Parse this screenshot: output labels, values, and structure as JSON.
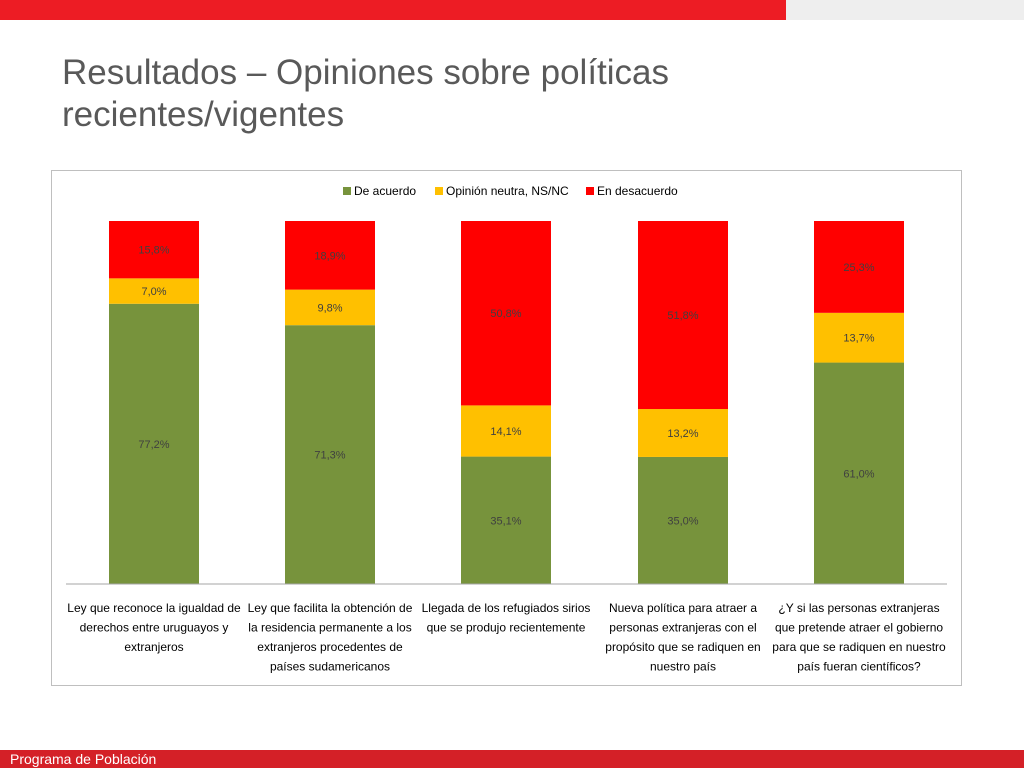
{
  "slide": {
    "title_line1": "Resultados – Opiniones sobre políticas",
    "title_line2": "recientes/vigentes",
    "footer": "Programa de Población"
  },
  "colors": {
    "topbar": "#ed1c24",
    "footer": "#d42027",
    "de_acuerdo": "#77933c",
    "neutral": "#ffc000",
    "desacuerdo": "#ff0000"
  },
  "chart_data": {
    "type": "bar",
    "stacked": true,
    "normalized_percent": true,
    "legend_position": "top",
    "grid": false,
    "categories": [
      [
        "Ley que reconoce la igualdad de",
        "derechos entre uruguayos y",
        "extranjeros"
      ],
      [
        "Ley que facilita la obtención de",
        "la residencia permanente a los",
        "extranjeros procedentes de",
        "países sudamericanos"
      ],
      [
        "Llegada de los refugiados sirios",
        "que se produjo recientemente"
      ],
      [
        "Nueva política para atraer a",
        "personas extranjeras con el",
        "propósito que se radiquen en",
        "nuestro país"
      ],
      [
        "¿Y si las personas extranjeras",
        "que pretende atraer el gobierno",
        "para que se radiquen en nuestro",
        "país fueran científicos?"
      ]
    ],
    "series": [
      {
        "name": "De acuerdo",
        "color": "#77933c",
        "values": [
          77.2,
          71.3,
          35.1,
          35.0,
          61.0
        ],
        "labels": [
          "77,2%",
          "71,3%",
          "35,1%",
          "35,0%",
          "61,0%"
        ]
      },
      {
        "name": "Opinión neutra, NS/NC",
        "color": "#ffc000",
        "values": [
          7.0,
          9.8,
          14.1,
          13.2,
          13.7
        ],
        "labels": [
          "7,0%",
          "9,8%",
          "14,1%",
          "13,2%",
          "13,7%"
        ]
      },
      {
        "name": "En desacuerdo",
        "color": "#ff0000",
        "values": [
          15.8,
          18.9,
          50.8,
          51.8,
          25.3
        ],
        "labels": [
          "15,8%",
          "18,9%",
          "50,8%",
          "51,8%",
          "25,3%"
        ]
      }
    ]
  }
}
